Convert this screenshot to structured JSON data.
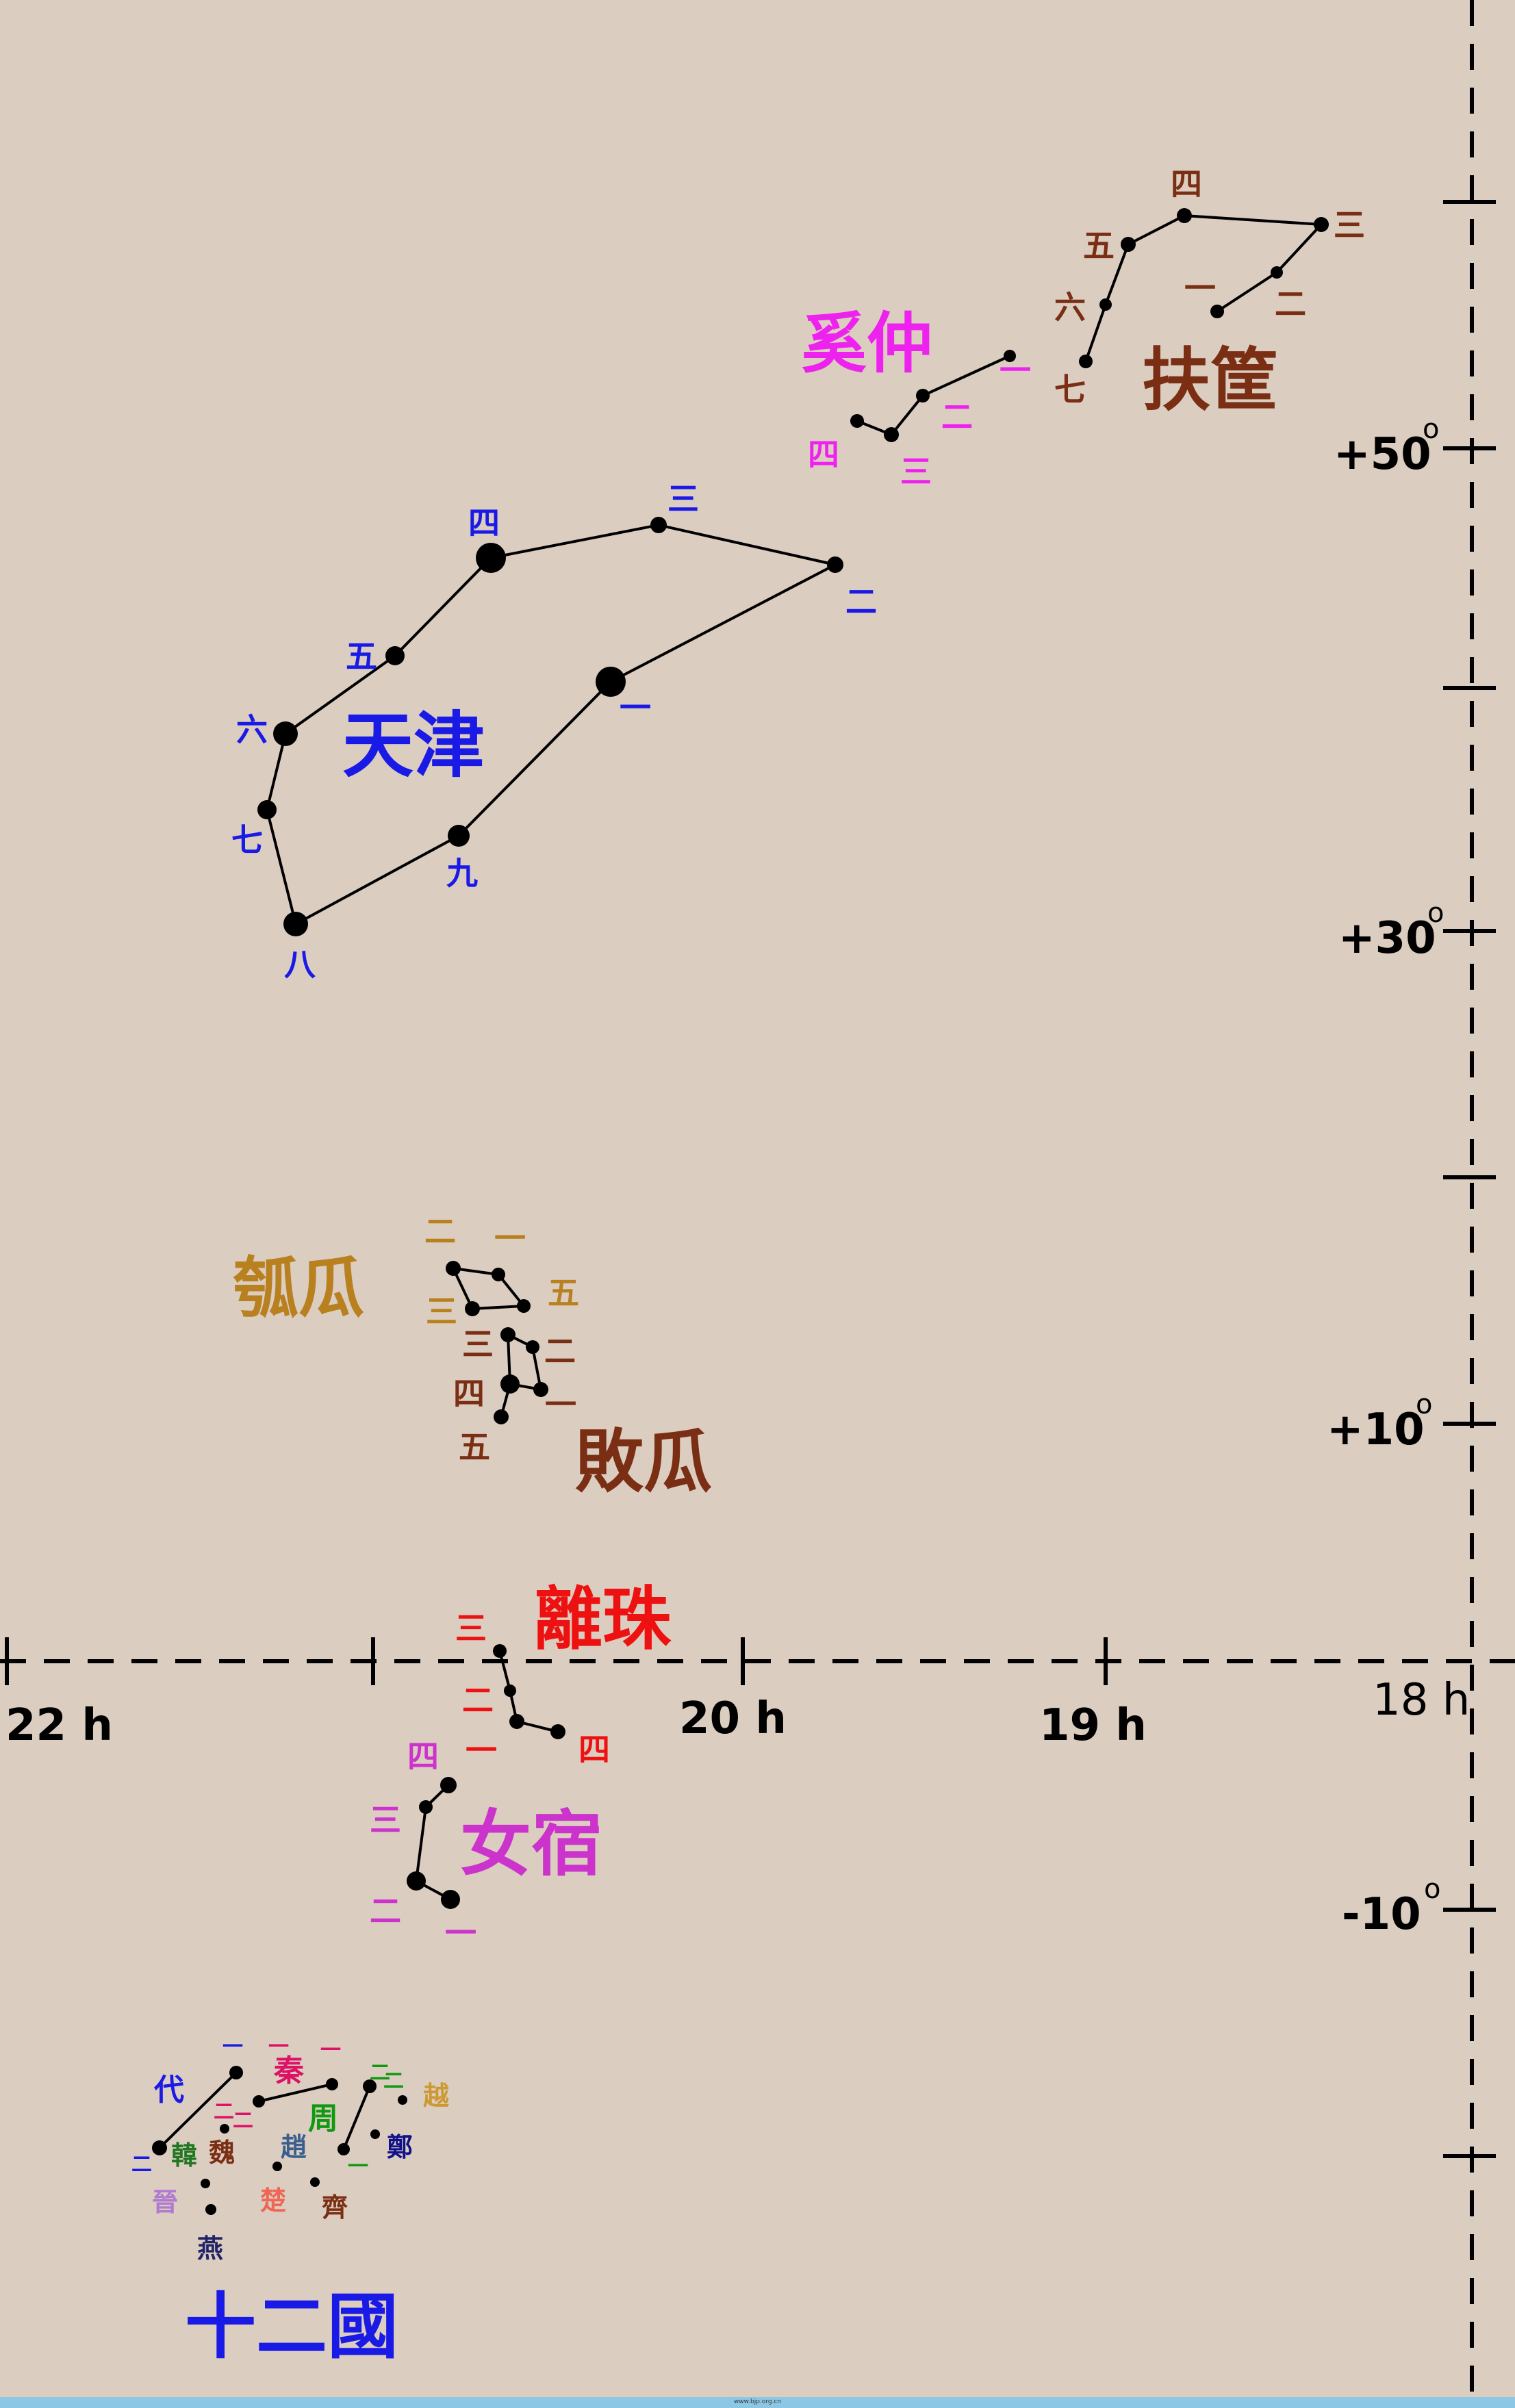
{
  "colors": {
    "background": "#dbcdc0",
    "line": "#000000",
    "blue": "#1a1ae6",
    "magenta": "#ee22ee",
    "brown": "#7a2e14",
    "gold": "#b8801e",
    "red": "#ee1111",
    "pink": "#cc33cc",
    "footer": "#8cc8e6"
  },
  "axes": {
    "ra_labels": [
      "22 h",
      "20 h",
      "19 h",
      "18 h"
    ],
    "dec_labels": [
      "+50",
      "+30",
      "+10",
      "-10"
    ],
    "degree_mark": "o"
  },
  "constellations": {
    "tianjin": {
      "name": "天津",
      "color": "blue",
      "star_labels": [
        "一",
        "二",
        "三",
        "四",
        "五",
        "六",
        "七",
        "八",
        "九"
      ]
    },
    "xizhong": {
      "name": "奚仲",
      "color": "magenta",
      "star_labels": [
        "一",
        "二",
        "三",
        "四"
      ]
    },
    "fukuang": {
      "name": "扶筐",
      "color": "brown",
      "star_labels": [
        "一",
        "二",
        "三",
        "四",
        "五",
        "六",
        "七"
      ]
    },
    "paogua": {
      "name": "瓠瓜",
      "color": "gold",
      "star_labels": [
        "一",
        "二",
        "三",
        "五"
      ]
    },
    "baigua": {
      "name": "敗瓜",
      "color": "brown",
      "star_labels": [
        "一",
        "二",
        "三",
        "四",
        "五"
      ]
    },
    "lizhu": {
      "name": "離珠",
      "color": "red",
      "star_labels": [
        "一",
        "二",
        "三",
        "四"
      ]
    },
    "nvxiu": {
      "name": "女宿",
      "color": "pink",
      "star_labels": [
        "一",
        "二",
        "三",
        "四"
      ]
    },
    "shiergguo": {
      "name": "十二國",
      "states": [
        "代",
        "秦",
        "周",
        "越",
        "鄭",
        "韓",
        "魏",
        "趙",
        "晉",
        "楚",
        "齊",
        "燕"
      ],
      "numbers": [
        "一",
        "二",
        "一",
        "二",
        "一",
        "二",
        "二",
        "一",
        "二"
      ]
    }
  },
  "footer": {
    "credit": "www.bjp.org.cn"
  }
}
